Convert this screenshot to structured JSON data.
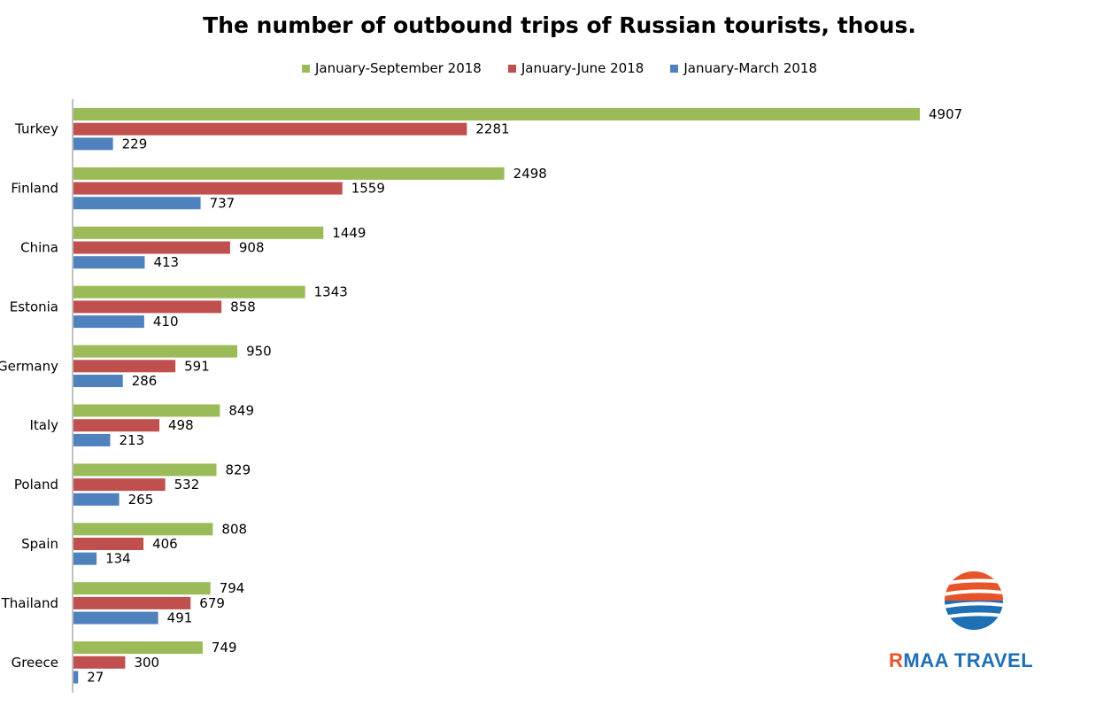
{
  "chart_data": {
    "type": "bar",
    "orientation": "horizontal",
    "title": "The number of outbound trips of Russian tourists, thous.",
    "categories": [
      "Turkey",
      "Finland",
      "China",
      "Estonia",
      "Germany",
      "Italy",
      "Poland",
      "Spain",
      "Thailand",
      "Greece"
    ],
    "series": [
      {
        "name": "January-September 2018",
        "color": "#9bbb59",
        "values": [
          4907,
          2498,
          1449,
          1343,
          950,
          849,
          829,
          808,
          794,
          749
        ]
      },
      {
        "name": "January-June 2018",
        "color": "#c0504d",
        "values": [
          2281,
          1559,
          908,
          858,
          591,
          498,
          532,
          406,
          679,
          300
        ]
      },
      {
        "name": "January-March 2018",
        "color": "#4f81bd",
        "values": [
          229,
          737,
          413,
          410,
          286,
          213,
          265,
          134,
          491,
          27
        ]
      }
    ],
    "legend_position": "top",
    "grid": false,
    "data_labels": true
  },
  "logo": {
    "text_r": "R",
    "text_rest": "MAA TRAVEL"
  }
}
